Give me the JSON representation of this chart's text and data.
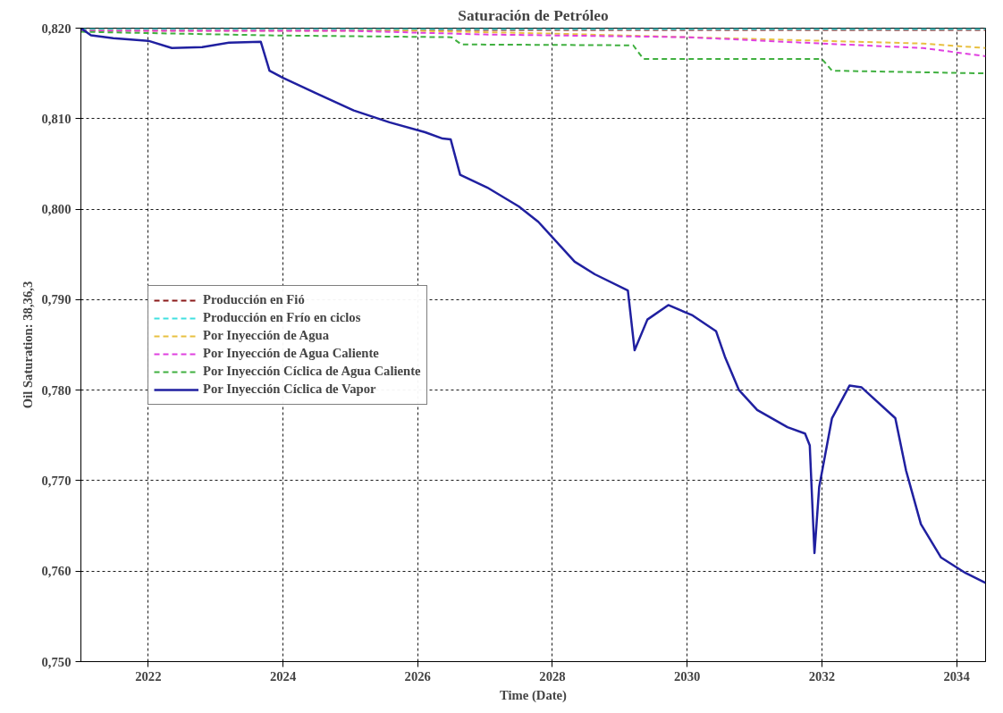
{
  "chart_data": {
    "type": "line",
    "title": "Saturación de Petróleo",
    "xlabel": "Time (Date)",
    "ylabel": "Oil Saturation: 38,36,3",
    "xlim": [
      2021.0,
      2034.43
    ],
    "xticks": [
      2022,
      2024,
      2026,
      2028,
      2030,
      2032,
      2034
    ],
    "ylim": [
      0.75,
      0.82
    ],
    "yticks": [
      {
        "value": 0.75,
        "label": "0,750"
      },
      {
        "value": 0.76,
        "label": "0,760"
      },
      {
        "value": 0.77,
        "label": "0,770"
      },
      {
        "value": 0.78,
        "label": "0,780"
      },
      {
        "value": 0.79,
        "label": "0,790"
      },
      {
        "value": 0.8,
        "label": "0,800"
      },
      {
        "value": 0.81,
        "label": "0,810"
      },
      {
        "value": 0.82,
        "label": "0,820"
      }
    ],
    "grid": true,
    "legend": "left",
    "marker": "none",
    "series": [
      {
        "name": "Producción en Fió",
        "color": "#8b1a1a",
        "line_style": "dashed",
        "x": [
          2021.0,
          2034.43
        ],
        "values": [
          0.8198,
          0.8198
        ]
      },
      {
        "name": "Producción en Frío en ciclos",
        "color": "#40e0e0",
        "line_style": "dashed",
        "x": [
          2021.0,
          2034.43
        ],
        "values": [
          0.8199,
          0.8199
        ]
      },
      {
        "name": "Por Inyección de Agua",
        "color": "#e8c040",
        "line_style": "dashed",
        "x": [
          2021.0,
          2026.0,
          2028.0,
          2030.0,
          2032.0,
          2033.5,
          2034.43
        ],
        "values": [
          0.8197,
          0.8197,
          0.8194,
          0.819,
          0.8186,
          0.8183,
          0.8178
        ]
      },
      {
        "name": "Por Inyección de Agua Caliente",
        "color": "#e040e0",
        "line_style": "dashed",
        "x": [
          2021.0,
          2025.0,
          2027.0,
          2030.0,
          2032.0,
          2033.5,
          2034.43
        ],
        "values": [
          0.8197,
          0.8197,
          0.8193,
          0.819,
          0.8183,
          0.8178,
          0.8169
        ]
      },
      {
        "name": "Por Inyección Cíclica de Agua Caliente",
        "color": "#40b040",
        "line_style": "dashed",
        "x": [
          2021.0,
          2023.8,
          2026.5,
          2026.65,
          2029.2,
          2029.35,
          2032.0,
          2032.15,
          2034.43
        ],
        "values": [
          0.8196,
          0.8192,
          0.819,
          0.8182,
          0.8181,
          0.8166,
          0.8166,
          0.8153,
          0.815
        ]
      },
      {
        "name": "Por Inyección Cíclica de Vapor",
        "color": "#2020a0",
        "line_style": "solid",
        "x": [
          2021.0,
          2021.15,
          2021.48,
          2022.0,
          2022.35,
          2022.8,
          2023.2,
          2023.67,
          2023.8,
          2024.0,
          2024.52,
          2025.05,
          2025.58,
          2026.11,
          2026.37,
          2026.49,
          2026.63,
          2027.03,
          2027.5,
          2027.79,
          2028.33,
          2028.63,
          2029.12,
          2029.22,
          2029.41,
          2029.72,
          2030.07,
          2030.43,
          2030.56,
          2030.77,
          2031.04,
          2031.49,
          2031.75,
          2031.82,
          2031.89,
          2031.96,
          2032.15,
          2032.41,
          2032.59,
          2033.09,
          2033.25,
          2033.47,
          2033.77,
          2034.13,
          2034.43
        ],
        "values": [
          0.82,
          0.8192,
          0.8189,
          0.8186,
          0.8178,
          0.8179,
          0.8184,
          0.8185,
          0.8153,
          0.8145,
          0.8127,
          0.8109,
          0.8096,
          0.8085,
          0.8078,
          0.8077,
          0.8038,
          0.8024,
          0.8003,
          0.7986,
          0.7942,
          0.7928,
          0.791,
          0.7844,
          0.7878,
          0.7894,
          0.7883,
          0.7865,
          0.7837,
          0.78,
          0.7778,
          0.7759,
          0.7752,
          0.7739,
          0.762,
          0.7693,
          0.7769,
          0.7805,
          0.7803,
          0.7769,
          0.7711,
          0.7652,
          0.7615,
          0.7598,
          0.7587
        ]
      }
    ]
  }
}
